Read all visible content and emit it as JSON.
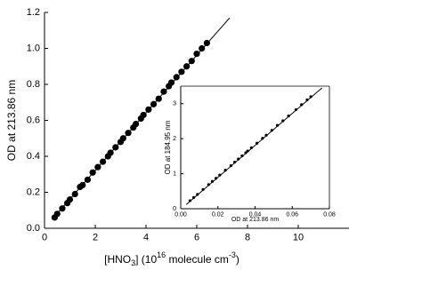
{
  "chart_data": [
    {
      "type": "scatter",
      "y_label": "OD at 213.86 nm",
      "x_label": [
        "[HNO",
        "3",
        "] (10",
        "16",
        " molecule cm",
        "-3",
        ")"
      ],
      "xlim": [
        0,
        12
      ],
      "ylim": [
        0,
        1.2
      ],
      "xticks": [
        0,
        2,
        4,
        6,
        8,
        10
      ],
      "yticks": [
        {
          "value": 0,
          "label": "0.0"
        },
        0.2,
        0.4,
        0.6,
        0.8,
        {
          "value": 1,
          "label": "1.0"
        },
        1.2
      ],
      "series": [
        {
          "type": "scatter",
          "color": "#000000",
          "x": [
            0.4,
            0.5,
            0.7,
            0.9,
            1.0,
            1.2,
            1.4,
            1.5,
            1.7,
            1.9,
            2.1,
            2.3,
            2.5,
            2.6,
            2.8,
            3.0,
            3.1,
            3.3,
            3.5,
            3.6,
            3.8,
            3.9,
            4.1,
            4.3,
            4.5,
            4.7,
            4.9,
            5.0,
            5.2,
            5.4,
            5.6,
            5.8,
            6.0,
            6.2,
            6.4
          ],
          "values": [
            0.06,
            0.08,
            0.11,
            0.14,
            0.16,
            0.19,
            0.23,
            0.24,
            0.27,
            0.31,
            0.34,
            0.37,
            0.4,
            0.42,
            0.45,
            0.48,
            0.5,
            0.53,
            0.56,
            0.58,
            0.61,
            0.63,
            0.66,
            0.69,
            0.72,
            0.76,
            0.79,
            0.81,
            0.84,
            0.87,
            0.9,
            0.93,
            0.97,
            1.0,
            1.03
          ]
        },
        {
          "type": "line",
          "color": "#000000",
          "x": [
            0.3,
            7.3
          ],
          "values": [
            0.05,
            1.17
          ]
        }
      ]
    },
    {
      "type": "scatter",
      "x_label": "OD at 213.86 nm",
      "y_label": "OD at 184.95 nm",
      "xlim": [
        0,
        0.08
      ],
      "ylim": [
        0,
        3.5
      ],
      "xticks": [
        {
          "value": 0,
          "label": "0.00"
        },
        0.02,
        0.04,
        0.06,
        0.08
      ],
      "yticks": [
        0,
        1,
        2,
        3
      ],
      "series": [
        {
          "type": "scatter",
          "color": "#000000",
          "x": [
            0.005,
            0.007,
            0.009,
            0.012,
            0.015,
            0.017,
            0.019,
            0.021,
            0.024,
            0.027,
            0.029,
            0.031,
            0.033,
            0.035,
            0.036,
            0.038,
            0.041,
            0.044,
            0.046,
            0.049,
            0.052,
            0.055,
            0.058,
            0.062,
            0.065,
            0.068,
            0.07
          ],
          "values": [
            0.23,
            0.32,
            0.41,
            0.55,
            0.69,
            0.78,
            0.87,
            0.96,
            1.1,
            1.23,
            1.33,
            1.42,
            1.51,
            1.6,
            1.65,
            1.74,
            1.87,
            2.01,
            2.1,
            2.24,
            2.38,
            2.51,
            2.65,
            2.83,
            2.97,
            3.11,
            3.2
          ]
        },
        {
          "type": "line",
          "color": "#000000",
          "x": [
            0.003,
            0.076
          ],
          "values": [
            0.12,
            3.45
          ]
        }
      ]
    }
  ]
}
